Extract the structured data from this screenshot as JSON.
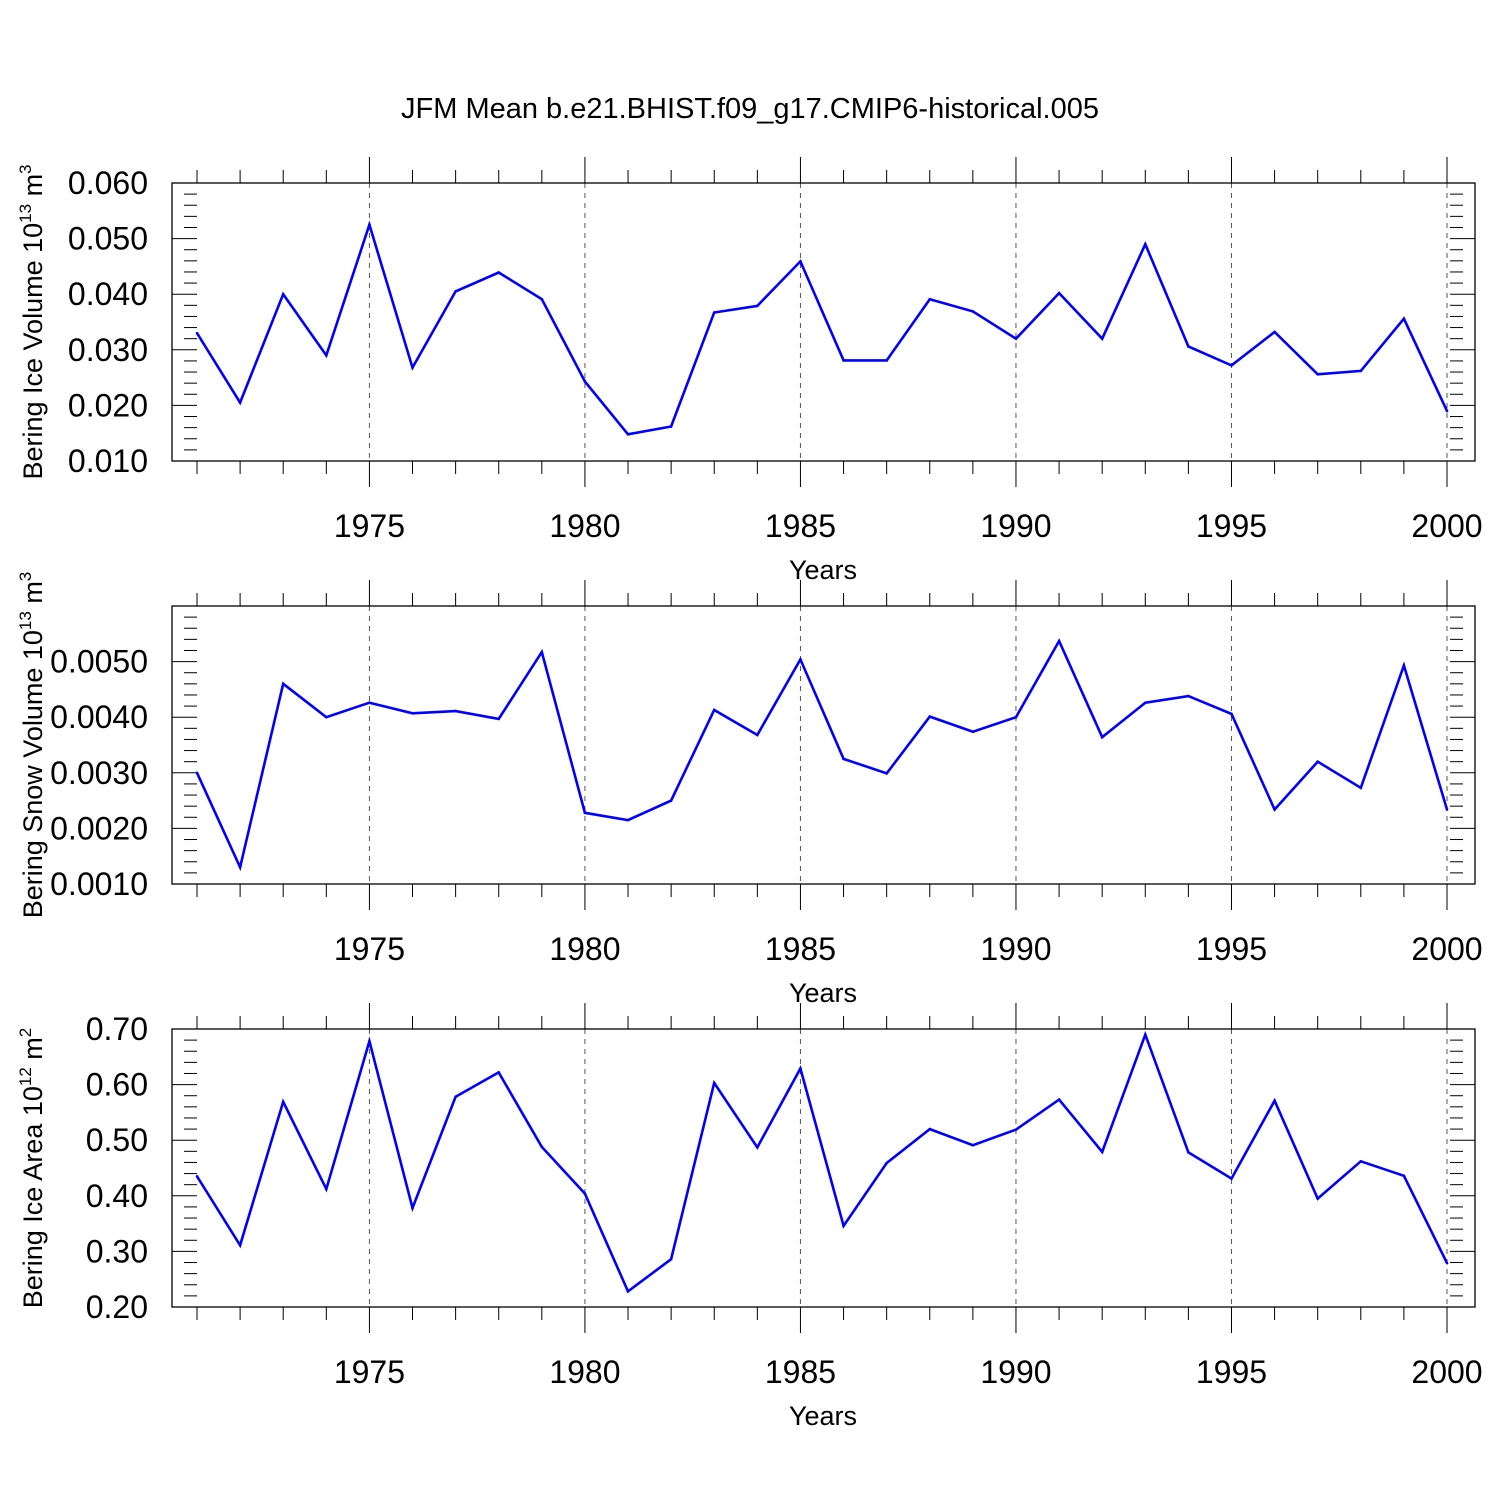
{
  "title": "JFM Mean b.e21.BHIST.f09_g17.CMIP6-historical.005",
  "line_color": "#0000ff",
  "chart_data": [
    {
      "type": "line",
      "xlabel": "Years",
      "ylabel": {
        "text": "Bering Ice Volume 10",
        "exp1": "13",
        "mid": " m",
        "exp2": "3"
      },
      "xlim": [
        1971,
        2000
      ],
      "ylim": [
        0.01,
        0.06
      ],
      "x_ticks": [
        1975,
        1980,
        1985,
        1990,
        1995,
        2000
      ],
      "x_tick_labels": [
        "1975",
        "1980",
        "1985",
        "1990",
        "1995",
        "2000"
      ],
      "y_ticks": [
        0.01,
        0.02,
        0.03,
        0.04,
        0.05,
        0.06
      ],
      "y_tick_labels": [
        "0.010",
        "0.020",
        "0.030",
        "0.040",
        "0.050",
        "0.060"
      ],
      "grid": "dashed vertical at major x ticks",
      "x": [
        1971,
        1972,
        1973,
        1974,
        1975,
        1976,
        1977,
        1978,
        1979,
        1980,
        1981,
        1982,
        1983,
        1984,
        1985,
        1986,
        1987,
        1988,
        1989,
        1990,
        1991,
        1992,
        1993,
        1994,
        1995,
        1996,
        1997,
        1998,
        1999,
        2000
      ],
      "values": [
        0.033,
        0.0205,
        0.04,
        0.029,
        0.0525,
        0.0268,
        0.0405,
        0.0439,
        0.0391,
        0.0243,
        0.0148,
        0.0162,
        0.0367,
        0.0379,
        0.0459,
        0.0281,
        0.0281,
        0.0391,
        0.0369,
        0.032,
        0.0402,
        0.032,
        0.049,
        0.0306,
        0.0272,
        0.0332,
        0.0256,
        0.0262,
        0.0356,
        0.019
      ]
    },
    {
      "type": "line",
      "xlabel": "Years",
      "ylabel": {
        "text": "Bering Snow Volume 10",
        "exp1": "13",
        "mid": " m",
        "exp2": "3"
      },
      "xlim": [
        1971,
        2000
      ],
      "ylim": [
        0.001,
        0.006
      ],
      "x_ticks": [
        1975,
        1980,
        1985,
        1990,
        1995,
        2000
      ],
      "x_tick_labels": [
        "1975",
        "1980",
        "1985",
        "1990",
        "1995",
        "2000"
      ],
      "y_ticks": [
        0.001,
        0.002,
        0.003,
        0.004,
        0.005
      ],
      "y_tick_labels": [
        "0.0010",
        "0.0020",
        "0.0030",
        "0.0040",
        "0.0050"
      ],
      "grid": "dashed vertical at major x ticks",
      "x": [
        1971,
        1972,
        1973,
        1974,
        1975,
        1976,
        1977,
        1978,
        1979,
        1980,
        1981,
        1982,
        1983,
        1984,
        1985,
        1986,
        1987,
        1988,
        1989,
        1990,
        1991,
        1992,
        1993,
        1994,
        1995,
        1996,
        1997,
        1998,
        1999,
        2000
      ],
      "values": [
        0.003,
        0.0013,
        0.0046,
        0.004,
        0.00426,
        0.00407,
        0.00411,
        0.00397,
        0.00517,
        0.00228,
        0.00215,
        0.0025,
        0.00413,
        0.00368,
        0.00504,
        0.00325,
        0.00299,
        0.00401,
        0.00374,
        0.004,
        0.00537,
        0.00364,
        0.00426,
        0.00438,
        0.00406,
        0.00234,
        0.0032,
        0.00273,
        0.00493,
        0.00234
      ]
    },
    {
      "type": "line",
      "xlabel": "Years",
      "ylabel": {
        "text": "Bering Ice Area 10",
        "exp1": "12",
        "mid": " m",
        "exp2": "2"
      },
      "xlim": [
        1971,
        2000
      ],
      "ylim": [
        0.2,
        0.7
      ],
      "x_ticks": [
        1975,
        1980,
        1985,
        1990,
        1995,
        2000
      ],
      "x_tick_labels": [
        "1975",
        "1980",
        "1985",
        "1990",
        "1995",
        "2000"
      ],
      "y_ticks": [
        0.2,
        0.3,
        0.4,
        0.5,
        0.6,
        0.7
      ],
      "y_tick_labels": [
        "0.20",
        "0.30",
        "0.40",
        "0.50",
        "0.60",
        "0.70"
      ],
      "grid": "dashed vertical at major x ticks",
      "x": [
        1971,
        1972,
        1973,
        1974,
        1975,
        1976,
        1977,
        1978,
        1979,
        1980,
        1981,
        1982,
        1983,
        1984,
        1985,
        1986,
        1987,
        1988,
        1989,
        1990,
        1991,
        1992,
        1993,
        1994,
        1995,
        1996,
        1997,
        1998,
        1999,
        2000
      ],
      "values": [
        0.435,
        0.311,
        0.569,
        0.412,
        0.678,
        0.378,
        0.578,
        0.622,
        0.488,
        0.404,
        0.228,
        0.286,
        0.603,
        0.487,
        0.629,
        0.346,
        0.459,
        0.52,
        0.491,
        0.519,
        0.573,
        0.479,
        0.69,
        0.478,
        0.431,
        0.571,
        0.395,
        0.462,
        0.436,
        0.279
      ]
    }
  ]
}
